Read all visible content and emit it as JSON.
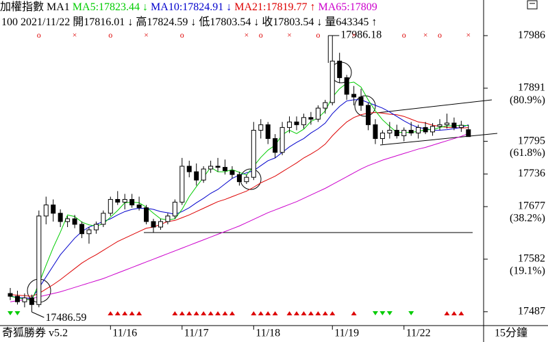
{
  "header": {
    "row1": [
      {
        "text": "加權指數 MA1",
        "color": "#000000"
      },
      {
        "text": "MA5:17823.44",
        "color": "#00cc00"
      },
      {
        "text": "↓",
        "color": "#00cc00"
      },
      {
        "text": "MA10:17824.91",
        "color": "#0000cc"
      },
      {
        "text": "↓",
        "color": "#0000cc"
      },
      {
        "text": "MA21:17819.77",
        "color": "#dd0000"
      },
      {
        "text": "↑",
        "color": "#dd0000"
      },
      {
        "text": "MA65:17809",
        "color": "#cc00cc"
      }
    ],
    "row2": [
      "100 2021/11/22",
      "開17816.01",
      "↓",
      "高17824.59",
      "↓",
      "低17803.54",
      "↓",
      "收17803.54",
      "↓",
      "量643345",
      "↑"
    ]
  },
  "footer": {
    "left": "奇狐勝券 v5.2",
    "right": "15分鐘"
  },
  "chart_data": {
    "type": "candlestick",
    "categories": [
      null,
      null,
      null,
      null,
      null,
      null,
      null,
      null,
      null,
      null,
      null,
      null,
      null,
      null,
      "11/16",
      null,
      null,
      null,
      null,
      null,
      null,
      null,
      null,
      null,
      "11/17",
      null,
      null,
      null,
      null,
      null,
      null,
      null,
      null,
      null,
      "11/18",
      null,
      null,
      null,
      null,
      null,
      null,
      null,
      null,
      null,
      null,
      "11/19",
      null,
      null,
      null,
      null,
      null,
      null,
      null,
      null,
      null,
      "11/22",
      null,
      null,
      null,
      null,
      null,
      null,
      null,
      null,
      null
    ],
    "open": [
      17520,
      17515,
      17505,
      17512,
      17500,
      17660,
      17680,
      17665,
      17650,
      17655,
      17645,
      17628,
      17635,
      17645,
      17665,
      17690,
      17685,
      17690,
      17680,
      17675,
      17650,
      17640,
      17650,
      17660,
      17685,
      17750,
      17740,
      17725,
      17745,
      17750,
      17748,
      17742,
      17735,
      17722,
      17730,
      17815,
      17825,
      17800,
      17775,
      17820,
      17830,
      17825,
      17838,
      17835,
      17855,
      17865,
      17940,
      17910,
      17880,
      17875,
      17860,
      17825,
      17800,
      17810,
      17815,
      17805,
      17815,
      17810,
      17820,
      17812,
      17822,
      17825,
      17828,
      17820,
      17816.01
    ],
    "high": [
      17530,
      17525,
      17520,
      17518,
      17670,
      17695,
      17690,
      17672,
      17660,
      17662,
      17650,
      17640,
      17650,
      17670,
      17695,
      17705,
      17700,
      17700,
      17695,
      17680,
      17655,
      17655,
      17665,
      17690,
      17765,
      17760,
      17755,
      17750,
      17760,
      17765,
      17762,
      17750,
      17740,
      17735,
      17830,
      17835,
      17830,
      17808,
      17830,
      17840,
      17840,
      17845,
      17848,
      17860,
      17870,
      17986.18,
      17955,
      17915,
      17895,
      17890,
      17865,
      17835,
      17815,
      17830,
      17825,
      17820,
      17830,
      17825,
      17830,
      17828,
      17835,
      17845,
      17838,
      17832,
      17824.59
    ],
    "low": [
      17508,
      17500,
      17495,
      17486.59,
      17495,
      17645,
      17650,
      17640,
      17640,
      17638,
      17620,
      17610,
      17628,
      17640,
      17660,
      17680,
      17672,
      17675,
      17670,
      17645,
      17630,
      17635,
      17645,
      17655,
      17680,
      17730,
      17715,
      17720,
      17738,
      17740,
      17735,
      17728,
      17715,
      17718,
      17725,
      17800,
      17790,
      17765,
      17770,
      17810,
      17815,
      17818,
      17825,
      17830,
      17845,
      17860,
      17900,
      17870,
      17860,
      17850,
      17815,
      17790,
      17790,
      17800,
      17800,
      17795,
      17805,
      17800,
      17808,
      17805,
      17815,
      17818,
      17815,
      17812,
      17803.54
    ],
    "close": [
      17515,
      17505,
      17512,
      17500,
      17660,
      17680,
      17665,
      17650,
      17655,
      17645,
      17628,
      17635,
      17645,
      17665,
      17690,
      17685,
      17690,
      17680,
      17675,
      17650,
      17640,
      17650,
      17660,
      17685,
      17750,
      17740,
      17725,
      17745,
      17750,
      17748,
      17742,
      17735,
      17722,
      17730,
      17815,
      17825,
      17800,
      17775,
      17820,
      17830,
      17825,
      17838,
      17835,
      17855,
      17865,
      17940,
      17910,
      17880,
      17875,
      17860,
      17825,
      17800,
      17810,
      17815,
      17805,
      17815,
      17810,
      17820,
      17812,
      17822,
      17825,
      17828,
      17820,
      17824,
      17803.54
    ],
    "series": [
      {
        "name": "MA65:17809",
        "color": "#cc00cc",
        "values": [
          17505,
          17507,
          17509,
          17511,
          17514,
          17517,
          17520,
          17523,
          17527,
          17531,
          17535,
          17539,
          17543,
          17547,
          17552,
          17557,
          17562,
          17567,
          17572,
          17577,
          17582,
          17587,
          17592,
          17597,
          17602,
          17607,
          17612,
          17617,
          17622,
          17627,
          17632,
          17637,
          17642,
          17648,
          17654,
          17660,
          17666,
          17671,
          17676,
          17681,
          17686,
          17692,
          17698,
          17704,
          17710,
          17717,
          17724,
          17731,
          17738,
          17745,
          17751,
          17756,
          17761,
          17765,
          17769,
          17773,
          17777,
          17781,
          17784,
          17788,
          17792,
          17796,
          17800,
          17804,
          17809
        ]
      },
      {
        "name": "MA21:17819.77",
        "color": "#dd0000",
        "values": [
          17518,
          17517,
          17516,
          17515,
          17520,
          17528,
          17536,
          17545,
          17555,
          17565,
          17575,
          17583,
          17590,
          17598,
          17606,
          17614,
          17620,
          17626,
          17632,
          17638,
          17640,
          17645,
          17650,
          17652,
          17657,
          17662,
          17668,
          17674,
          17680,
          17686,
          17690,
          17695,
          17700,
          17705,
          17712,
          17720,
          17726,
          17732,
          17740,
          17748,
          17756,
          17765,
          17772,
          17780,
          17790,
          17805,
          17818,
          17830,
          17838,
          17843,
          17846,
          17847,
          17846,
          17844,
          17843,
          17840,
          17835,
          17830,
          17828,
          17824,
          17822,
          17820,
          17820,
          17819,
          17819.77
        ]
      },
      {
        "name": "MA10:17824.91",
        "color": "#0000cc",
        "values": [
          17515,
          17513,
          17512,
          17511,
          17530,
          17550,
          17570,
          17590,
          17605,
          17620,
          17632,
          17640,
          17645,
          17650,
          17655,
          17662,
          17668,
          17672,
          17674,
          17674,
          17672,
          17668,
          17666,
          17663,
          17668,
          17675,
          17684,
          17692,
          17701,
          17708,
          17718,
          17728,
          17734,
          17738,
          17742,
          17751,
          17760,
          17765,
          17775,
          17785,
          17793,
          17800,
          17810,
          17818,
          17828,
          17845,
          17858,
          17868,
          17870,
          17870,
          17865,
          17860,
          17855,
          17848,
          17840,
          17832,
          17825,
          17820,
          17818,
          17815,
          17815,
          17816,
          17818,
          17820,
          17824.91
        ]
      },
      {
        "name": "MA5:17823.44",
        "color": "#00cc00",
        "values": [
          17515,
          17512,
          17510,
          17508,
          17538,
          17571,
          17603,
          17631,
          17662,
          17659,
          17649,
          17644,
          17642,
          17646,
          17658,
          17670,
          17684,
          17685,
          17684,
          17676,
          17665,
          17655,
          17653,
          17655,
          17672,
          17695,
          17713,
          17730,
          17748,
          17740,
          17740,
          17744,
          17739,
          17734,
          17750,
          17766,
          17779,
          17788,
          17807,
          17815,
          17809,
          17817,
          17831,
          17837,
          17850,
          17875,
          17890,
          17900,
          17902,
          17893,
          17870,
          17850,
          17834,
          17822,
          17811,
          17811,
          17811,
          17813,
          17816,
          17816,
          17820,
          17823,
          17823,
          17824,
          17823.44
        ]
      }
    ],
    "ylim": [
      17462,
      17996
    ],
    "yticks": [
      17986,
      17891,
      17795,
      17736,
      17677,
      17582,
      17487
    ],
    "annotations": {
      "high": 17986.18,
      "low": 17486.59
    },
    "fib_levels": [
      {
        "value": 80.9,
        "label": "(80.9%)"
      },
      {
        "value": 61.8,
        "label": "(61.8%)"
      },
      {
        "value": 38.2,
        "label": "(38.2%)"
      },
      {
        "value": 19.1,
        "label": "(19.1%)"
      }
    ],
    "top_markers": [
      {
        "index": 4,
        "symbol": "o"
      },
      {
        "index": 9,
        "symbol": "×"
      },
      {
        "index": 14,
        "symbol": "o"
      },
      {
        "index": 19,
        "symbol": "×"
      },
      {
        "index": 24,
        "symbol": "o"
      },
      {
        "index": 33,
        "symbol": "×"
      },
      {
        "index": 35,
        "symbol": "o"
      },
      {
        "index": 39,
        "symbol": "×"
      },
      {
        "index": 43,
        "symbol": "o"
      },
      {
        "index": 48,
        "symbol": "×"
      },
      {
        "index": 55,
        "symbol": "o"
      },
      {
        "index": 58,
        "symbol": "×"
      },
      {
        "index": 60,
        "symbol": "o"
      },
      {
        "index": 64,
        "symbol": "×"
      }
    ],
    "up_signals": [
      14,
      15,
      16,
      17,
      18,
      23,
      24,
      25,
      26,
      27,
      28,
      29,
      30,
      31,
      34,
      35,
      36,
      37,
      39,
      40,
      41,
      42,
      43,
      44,
      45,
      48,
      61,
      62,
      63
    ],
    "down_signals": [
      0,
      1,
      51,
      52,
      53,
      56
    ],
    "up_color": "#dd0000",
    "down_color": "#00cc00",
    "marker_color": "#dd0000"
  }
}
